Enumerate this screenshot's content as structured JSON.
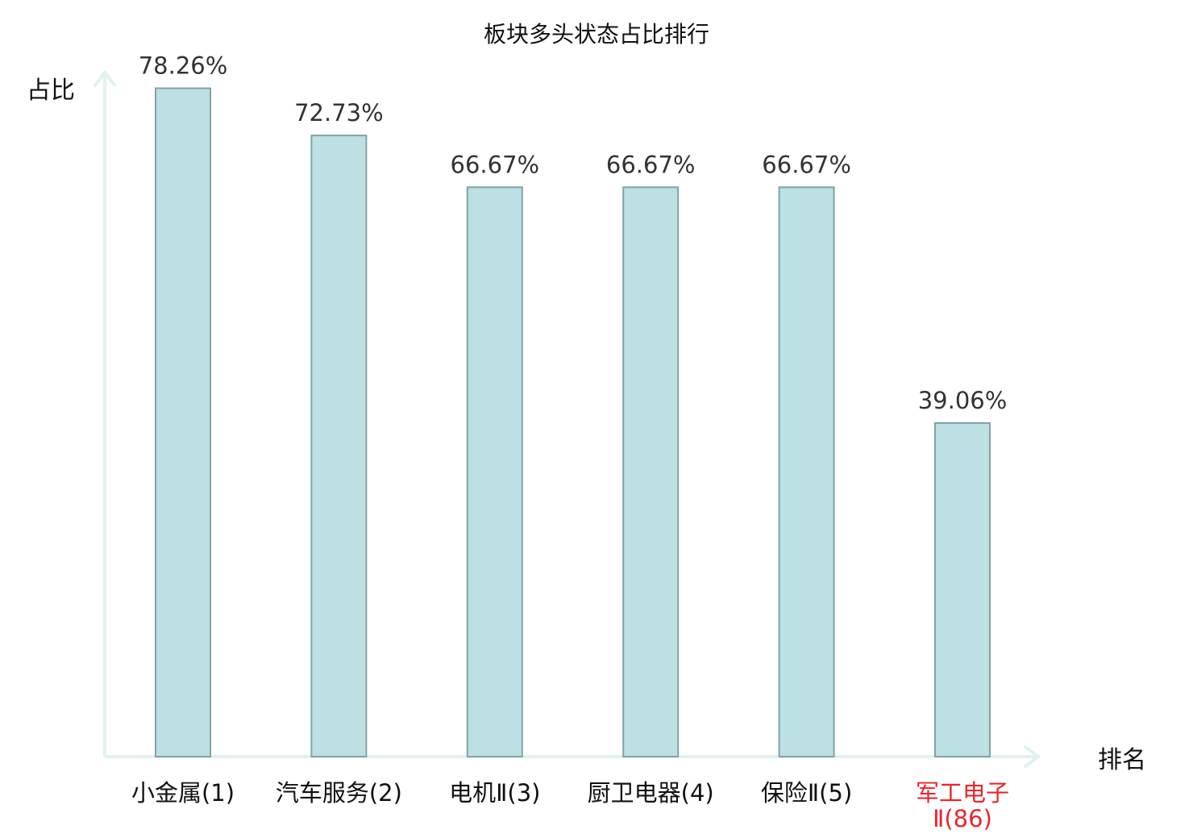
{
  "chart_data": {
    "type": "bar",
    "title": "板块多头状态占比排行",
    "ylabel": "占比",
    "xlabel": "排名",
    "ylim": [
      0,
      80
    ],
    "grid": false,
    "bar_color": "#bce0e3",
    "bar_edge_color": "#82a3a6",
    "axis_color": "#dff2ef",
    "highlight_color": "#e8262b",
    "categories": [
      {
        "lines": [
          "小金属(1)"
        ],
        "highlight": false
      },
      {
        "lines": [
          "汽车服务(2)"
        ],
        "highlight": false
      },
      {
        "lines": [
          "电机Ⅱ(3)"
        ],
        "highlight": false
      },
      {
        "lines": [
          "厨卫电器(4)"
        ],
        "highlight": false
      },
      {
        "lines": [
          "保险Ⅱ(5)"
        ],
        "highlight": false
      },
      {
        "lines": [
          "军工电子",
          "Ⅱ(86)"
        ],
        "highlight": true
      }
    ],
    "values": [
      78.26,
      72.73,
      66.67,
      66.67,
      66.67,
      39.06
    ],
    "value_labels": [
      "78.26%",
      "72.73%",
      "66.67%",
      "66.67%",
      "66.67%",
      "39.06%"
    ]
  }
}
